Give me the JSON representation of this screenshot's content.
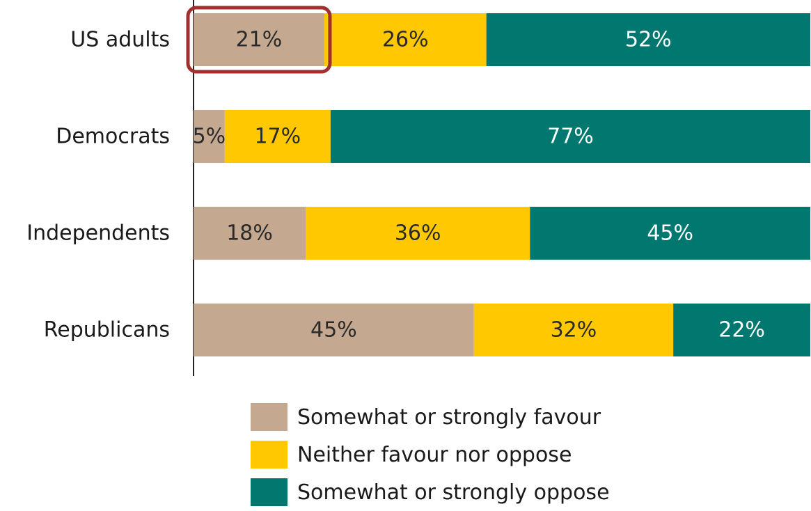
{
  "chart_data": {
    "type": "bar",
    "orientation": "horizontal",
    "stacked": true,
    "categories": [
      "US adults",
      "Democrats",
      "Independents",
      "Republicans"
    ],
    "series": [
      {
        "name": "Somewhat or strongly favour",
        "values": [
          21,
          5,
          18,
          45
        ],
        "labels": [
          "21%",
          "5%",
          "18%",
          "45%"
        ],
        "color": "#c4a890",
        "text_color": "#2a2a2a"
      },
      {
        "name": "Neither favour nor oppose",
        "values": [
          26,
          17,
          36,
          32
        ],
        "labels": [
          "26%",
          "17%",
          "36%",
          "32%"
        ],
        "color": "#ffc800",
        "text_color": "#2a2a2a"
      },
      {
        "name": "Somewhat or strongly oppose",
        "values": [
          52,
          77,
          45,
          22
        ],
        "labels": [
          "52%",
          "77%",
          "45%",
          "22%"
        ],
        "color": "#007870",
        "text_color": "#ffffff"
      }
    ],
    "xlim": [
      0,
      100
    ],
    "grid": false,
    "legend": "bottom",
    "highlight": {
      "category": "US adults",
      "series": "Somewhat or strongly favour",
      "color": "#a0302e"
    }
  }
}
